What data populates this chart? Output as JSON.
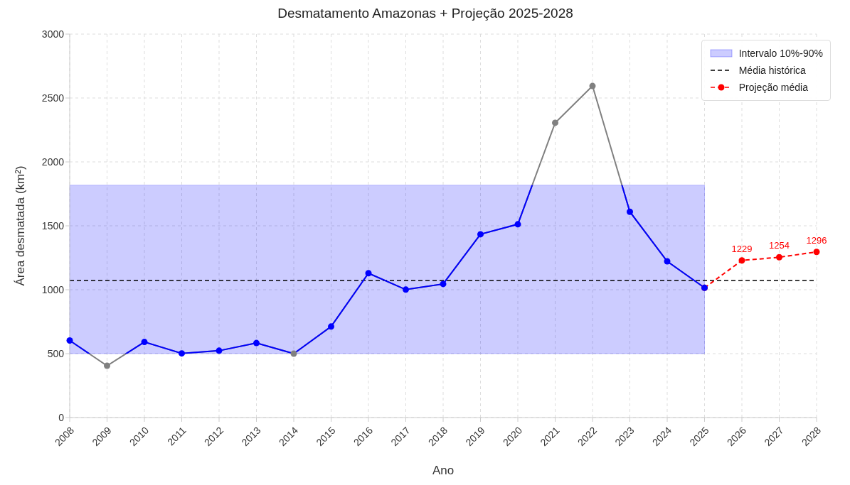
{
  "chart_data": {
    "type": "line",
    "title": "Desmatamento Amazonas + Projeção 2025-2028",
    "xlabel": "Ano",
    "ylabel": "Área desmatada (km²)",
    "categories": [
      "2008",
      "2009",
      "2010",
      "2011",
      "2012",
      "2013",
      "2014",
      "2015",
      "2016",
      "2017",
      "2018",
      "2019",
      "2020",
      "2021",
      "2022",
      "2023",
      "2024",
      "2025",
      "2026",
      "2027",
      "2028"
    ],
    "ylim": [
      0,
      3000
    ],
    "yticks": [
      0,
      500,
      1000,
      1500,
      2000,
      2500,
      3000
    ],
    "grid": true,
    "legend": "top right",
    "marker": "circle",
    "series": [
      {
        "color": "#808080",
        "line_style": "solid",
        "values": [
          603,
          405,
          591,
          502,
          523,
          583,
          500,
          712,
          1129,
          1001,
          1045,
          1434,
          1512,
          2306,
          2594,
          1610,
          1222,
          1015,
          null,
          null,
          null
        ],
        "colors": [
          "#0000ff",
          "#808080",
          "#0000ff",
          "#0000ff",
          "#0000ff",
          "#0000ff",
          "#808080",
          "#0000ff",
          "#0000ff",
          "#0000ff",
          "#0000ff",
          "#0000ff",
          "#0000ff",
          "#808080",
          "#808080",
          "#0000ff",
          "#0000ff",
          "#0000ff",
          null,
          null,
          null
        ]
      },
      {
        "name": "Projeção média",
        "color": "#ff0000",
        "line_style": "dashed",
        "values": [
          null,
          null,
          null,
          null,
          null,
          null,
          null,
          null,
          null,
          null,
          null,
          null,
          null,
          null,
          null,
          null,
          null,
          1015,
          1229,
          1254,
          1296
        ],
        "value_labels": [
          null,
          null,
          null,
          null,
          null,
          null,
          null,
          null,
          null,
          null,
          null,
          null,
          null,
          null,
          null,
          null,
          null,
          null,
          "1229",
          "1254",
          "1296"
        ]
      }
    ],
    "bands": [
      {
        "axis": "y",
        "from": 500,
        "to": 1818,
        "label": "Intervalo 10%-90%",
        "color": "#0000ff"
      }
    ],
    "ref_lines": [
      {
        "axis": "y",
        "value": 1072,
        "label": "Média histórica",
        "color": "#000000",
        "line_style": "dashed"
      }
    ]
  }
}
